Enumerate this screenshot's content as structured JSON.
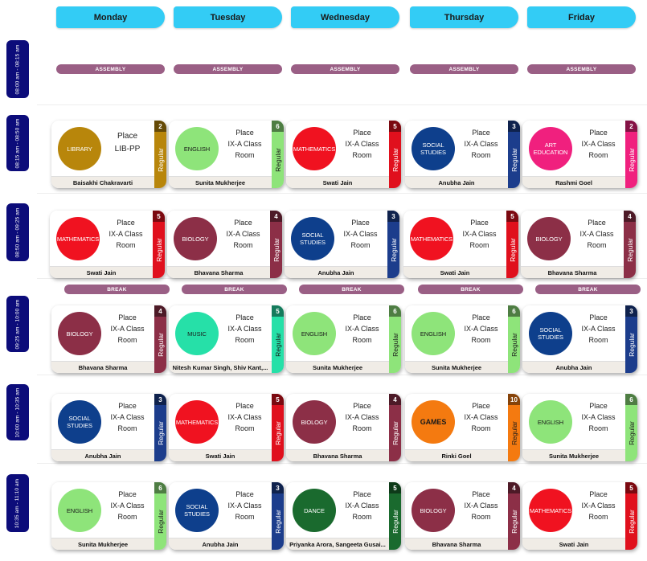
{
  "days": [
    "Monday",
    "Tuesday",
    "Wednesday",
    "Thursday",
    "Friday"
  ],
  "times": [
    "08:00 am - 08:15 am",
    "08:15 am - 08:50 am",
    "08:50 am - 09:25 am",
    "09:25 am - 10:00 am",
    "10:00 am - 10:35 am",
    "10:35 am - 11:10 am"
  ],
  "assembly_label": "ASSEMBLY",
  "break_label": "BREAK",
  "type_label": "Regular",
  "colors": {
    "header": "#33ccf5",
    "time_pill": "#0c0c7a",
    "bar": "#9a5f85"
  },
  "subject_colors": {
    "LIBRARY": {
      "bg": "#b8860b",
      "tag": "#b8860b",
      "fg": "#ffffff"
    },
    "ENGLISH": {
      "bg": "#8ee47a",
      "tag": "#8ee47a",
      "fg": "#1a1a1a"
    },
    "MATHEMATICS": {
      "bg": "#f01220",
      "tag": "#e0101d",
      "fg": "#ffffff"
    },
    "SOCIAL STUDIES": {
      "bg": "#0e3f8c",
      "tag": "#1c3d8c",
      "fg": "#ffffff"
    },
    "ART EDUCATION": {
      "bg": "#f0207e",
      "tag": "#f0207e",
      "fg": "#ffffff"
    },
    "BIOLOGY": {
      "bg": "#8c2f47",
      "tag": "#8c2f47",
      "fg": "#ffffff"
    },
    "MUSIC": {
      "bg": "#26e0a8",
      "tag": "#26e0a8",
      "fg": "#1a1a1a"
    },
    "GAMES": {
      "bg": "#f47a10",
      "tag": "#f47a10",
      "fg": "#1a1a1a"
    },
    "DANCE": {
      "bg": "#1a6a2e",
      "tag": "#1a6a2e",
      "fg": "#ffffff"
    }
  },
  "rows": [
    [
      {
        "subject": "LIBRARY",
        "place": [
          "Place",
          "LIB-PP"
        ],
        "teacher": "Baisakhi Chakravarti",
        "num": "2"
      },
      {
        "subject": "ENGLISH",
        "place": [
          "Place",
          "IX-A Class",
          "Room"
        ],
        "teacher": "Sunita Mukherjee",
        "num": "6"
      },
      {
        "subject": "MATHEMATICS",
        "place": [
          "Place",
          "IX-A Class",
          "Room"
        ],
        "teacher": "Swati Jain",
        "num": "5"
      },
      {
        "subject": "SOCIAL STUDIES",
        "place": [
          "Place",
          "IX-A Class",
          "Room"
        ],
        "teacher": "Anubha Jain",
        "num": "3"
      },
      {
        "subject": "ART EDUCATION",
        "place": [
          "Place",
          "IX-A Class",
          "Room"
        ],
        "teacher": "Rashmi Goel",
        "num": "2"
      }
    ],
    [
      {
        "subject": "MATHEMATICS",
        "place": [
          "Place",
          "IX-A Class",
          "Room"
        ],
        "teacher": "Swati Jain",
        "num": "5"
      },
      {
        "subject": "BIOLOGY",
        "place": [
          "Place",
          "IX-A Class",
          "Room"
        ],
        "teacher": "Bhavana Sharma",
        "num": "4"
      },
      {
        "subject": "SOCIAL STUDIES",
        "place": [
          "Place",
          "IX-A Class",
          "Room"
        ],
        "teacher": "Anubha Jain",
        "num": "3"
      },
      {
        "subject": "MATHEMATICS",
        "place": [
          "Place",
          "IX-A Class",
          "Room"
        ],
        "teacher": "Swati Jain",
        "num": "5"
      },
      {
        "subject": "BIOLOGY",
        "place": [
          "Place",
          "IX-A Class",
          "Room"
        ],
        "teacher": "Bhavana Sharma",
        "num": "4"
      }
    ],
    [
      {
        "subject": "BIOLOGY",
        "place": [
          "Place",
          "IX-A Class",
          "Room"
        ],
        "teacher": "Bhavana Sharma",
        "num": "4"
      },
      {
        "subject": "MUSIC",
        "place": [
          "Place",
          "IX-A Class",
          "Room"
        ],
        "teacher": "Nitesh Kumar Singh, Shiv Kant,...",
        "num": "5"
      },
      {
        "subject": "ENGLISH",
        "place": [
          "Place",
          "IX-A Class",
          "Room"
        ],
        "teacher": "Sunita Mukherjee",
        "num": "6"
      },
      {
        "subject": "ENGLISH",
        "place": [
          "Place",
          "IX-A Class",
          "Room"
        ],
        "teacher": "Sunita Mukherjee",
        "num": "6"
      },
      {
        "subject": "SOCIAL STUDIES",
        "place": [
          "Place",
          "IX-A Class",
          "Room"
        ],
        "teacher": "Anubha Jain",
        "num": "3"
      }
    ],
    [
      {
        "subject": "SOCIAL STUDIES",
        "place": [
          "Place",
          "IX-A Class",
          "Room"
        ],
        "teacher": "Anubha Jain",
        "num": "3"
      },
      {
        "subject": "MATHEMATICS",
        "place": [
          "Place",
          "IX-A Class",
          "Room"
        ],
        "teacher": "Swati Jain",
        "num": "5"
      },
      {
        "subject": "BIOLOGY",
        "place": [
          "Place",
          "IX-A Class",
          "Room"
        ],
        "teacher": "Bhavana Sharma",
        "num": "4"
      },
      {
        "subject": "GAMES",
        "place": [
          "Place",
          "IX-A Class",
          "Room"
        ],
        "teacher": "Rinki Goel",
        "num": "10"
      },
      {
        "subject": "ENGLISH",
        "place": [
          "Place",
          "IX-A Class",
          "Room"
        ],
        "teacher": "Sunita Mukherjee",
        "num": "6"
      }
    ],
    [
      {
        "subject": "ENGLISH",
        "place": [
          "Place",
          "IX-A Class",
          "Room"
        ],
        "teacher": "Sunita Mukherjee",
        "num": "6"
      },
      {
        "subject": "SOCIAL STUDIES",
        "place": [
          "Place",
          "IX-A Class",
          "Room"
        ],
        "teacher": "Anubha Jain",
        "num": "3"
      },
      {
        "subject": "DANCE",
        "place": [
          "Place",
          "IX-A Class",
          "Room"
        ],
        "teacher": "Priyanka Arora, Sangeeta Gusai...",
        "num": "5"
      },
      {
        "subject": "BIOLOGY",
        "place": [
          "Place",
          "IX-A Class",
          "Room"
        ],
        "teacher": "Bhavana Sharma",
        "num": "4"
      },
      {
        "subject": "MATHEMATICS",
        "place": [
          "Place",
          "IX-A Class",
          "Room"
        ],
        "teacher": "Swati Jain",
        "num": "5"
      }
    ]
  ]
}
